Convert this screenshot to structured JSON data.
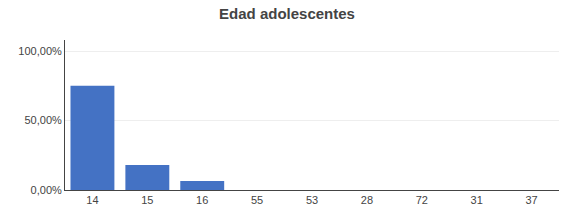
{
  "chart_data": {
    "type": "bar",
    "title": "Edad adolescentes",
    "categories": [
      "14",
      "15",
      "16",
      "55",
      "53",
      "28",
      "72",
      "31",
      "37"
    ],
    "values": [
      0.75,
      0.18,
      0.065,
      0.0,
      0.0,
      0.0,
      0.0,
      0.0,
      0.0
    ],
    "color": "#4472C4",
    "ylim": [
      0,
      1.08
    ],
    "yticks": [
      {
        "value": 0.0,
        "label": "0,00%"
      },
      {
        "value": 0.5,
        "label": "50,00%"
      },
      {
        "value": 1.0,
        "label": "100,00%"
      }
    ],
    "grid": true
  }
}
